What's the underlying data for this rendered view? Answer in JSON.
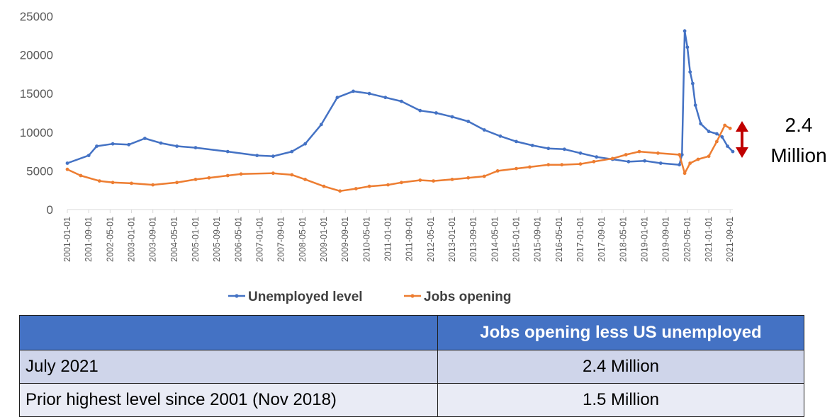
{
  "chart_data": {
    "type": "line",
    "title": "",
    "xlabel": "",
    "ylabel": "",
    "ylim": [
      0,
      25000
    ],
    "y_ticks": [
      "0",
      "5000",
      "10000",
      "15000",
      "20000",
      "25000"
    ],
    "x_ticks": [
      "2001-01-01",
      "2001-09-01",
      "2002-05-01",
      "2003-01-01",
      "2003-09-01",
      "2004-05-01",
      "2005-01-01",
      "2005-09-01",
      "2006-05-01",
      "2007-01-01",
      "2007-09-01",
      "2008-05-01",
      "2009-01-01",
      "2009-09-01",
      "2010-05-01",
      "2011-01-01",
      "2011-09-01",
      "2012-05-01",
      "2013-01-01",
      "2013-09-01",
      "2014-05-01",
      "2015-01-01",
      "2015-09-01",
      "2016-05-01",
      "2017-01-01",
      "2017-09-01",
      "2018-05-01",
      "2019-01-01",
      "2019-09-01",
      "2020-05-01",
      "2021-01-01",
      "2021-09-01"
    ],
    "x_range": [
      "2001-01-01",
      "2021-10-01"
    ],
    "grid": false,
    "legend_position": "bottom",
    "series": [
      {
        "name": "Unemployed level",
        "color": "#4472c4",
        "points": [
          [
            "2001-01-01",
            6000
          ],
          [
            "2001-09-01",
            7000
          ],
          [
            "2001-12-01",
            8200
          ],
          [
            "2002-06-01",
            8500
          ],
          [
            "2002-12-01",
            8400
          ],
          [
            "2003-06-01",
            9200
          ],
          [
            "2003-12-01",
            8600
          ],
          [
            "2004-06-01",
            8200
          ],
          [
            "2005-01-01",
            8000
          ],
          [
            "2006-01-01",
            7500
          ],
          [
            "2006-12-01",
            7000
          ],
          [
            "2007-06-01",
            6900
          ],
          [
            "2008-01-01",
            7500
          ],
          [
            "2008-06-01",
            8500
          ],
          [
            "2008-12-01",
            11000
          ],
          [
            "2009-06-01",
            14500
          ],
          [
            "2009-12-01",
            15300
          ],
          [
            "2010-06-01",
            15000
          ],
          [
            "2010-12-01",
            14500
          ],
          [
            "2011-06-01",
            14000
          ],
          [
            "2012-01-01",
            12800
          ],
          [
            "2012-07-01",
            12500
          ],
          [
            "2013-01-01",
            12000
          ],
          [
            "2013-07-01",
            11400
          ],
          [
            "2014-01-01",
            10300
          ],
          [
            "2014-07-01",
            9500
          ],
          [
            "2015-01-01",
            8800
          ],
          [
            "2015-07-01",
            8300
          ],
          [
            "2016-01-01",
            7900
          ],
          [
            "2016-07-01",
            7800
          ],
          [
            "2017-01-01",
            7300
          ],
          [
            "2017-07-01",
            6800
          ],
          [
            "2018-01-01",
            6500
          ],
          [
            "2018-07-01",
            6200
          ],
          [
            "2019-01-01",
            6300
          ],
          [
            "2019-07-01",
            6000
          ],
          [
            "2020-02-01",
            5800
          ],
          [
            "2020-03-01",
            7100
          ],
          [
            "2020-04-01",
            23100
          ],
          [
            "2020-05-01",
            21000
          ],
          [
            "2020-06-01",
            17800
          ],
          [
            "2020-07-01",
            16300
          ],
          [
            "2020-08-01",
            13500
          ],
          [
            "2020-10-01",
            11100
          ],
          [
            "2021-01-01",
            10100
          ],
          [
            "2021-04-01",
            9800
          ],
          [
            "2021-06-01",
            9400
          ],
          [
            "2021-08-01",
            8200
          ],
          [
            "2021-10-01",
            7500
          ]
        ]
      },
      {
        "name": "Jobs opening",
        "color": "#ed7d31",
        "points": [
          [
            "2001-01-01",
            5200
          ],
          [
            "2001-06-01",
            4400
          ],
          [
            "2002-01-01",
            3700
          ],
          [
            "2002-06-01",
            3500
          ],
          [
            "2003-01-01",
            3400
          ],
          [
            "2003-09-01",
            3200
          ],
          [
            "2004-06-01",
            3500
          ],
          [
            "2005-01-01",
            3900
          ],
          [
            "2005-06-01",
            4100
          ],
          [
            "2006-01-01",
            4400
          ],
          [
            "2006-06-01",
            4600
          ],
          [
            "2007-06-01",
            4700
          ],
          [
            "2008-01-01",
            4500
          ],
          [
            "2008-06-01",
            3900
          ],
          [
            "2009-01-01",
            3000
          ],
          [
            "2009-07-01",
            2400
          ],
          [
            "2010-01-01",
            2700
          ],
          [
            "2010-06-01",
            3000
          ],
          [
            "2011-01-01",
            3200
          ],
          [
            "2011-06-01",
            3500
          ],
          [
            "2012-01-01",
            3800
          ],
          [
            "2012-06-01",
            3700
          ],
          [
            "2013-01-01",
            3900
          ],
          [
            "2013-07-01",
            4100
          ],
          [
            "2014-01-01",
            4300
          ],
          [
            "2014-06-01",
            5000
          ],
          [
            "2015-01-01",
            5300
          ],
          [
            "2015-06-01",
            5500
          ],
          [
            "2016-01-01",
            5800
          ],
          [
            "2016-06-01",
            5800
          ],
          [
            "2017-01-01",
            5900
          ],
          [
            "2017-06-01",
            6200
          ],
          [
            "2018-01-01",
            6600
          ],
          [
            "2018-06-01",
            7100
          ],
          [
            "2018-11-01",
            7500
          ],
          [
            "2019-06-01",
            7300
          ],
          [
            "2020-02-01",
            7100
          ],
          [
            "2020-04-01",
            4700
          ],
          [
            "2020-06-01",
            6000
          ],
          [
            "2020-09-01",
            6500
          ],
          [
            "2021-01-01",
            6900
          ],
          [
            "2021-04-01",
            8800
          ],
          [
            "2021-07-01",
            10900
          ],
          [
            "2021-09-01",
            10500
          ]
        ]
      }
    ]
  },
  "annotation": {
    "line1": "2.4",
    "line2": "Million",
    "arrow_color": "#c00000"
  },
  "table": {
    "headers": [
      "",
      "Jobs opening less US unemployed"
    ],
    "rows": [
      {
        "label": "July 2021",
        "value": "2.4 Million"
      },
      {
        "label": "Prior highest level since 2001 (Nov 2018)",
        "value": "1.5 Million"
      }
    ]
  }
}
